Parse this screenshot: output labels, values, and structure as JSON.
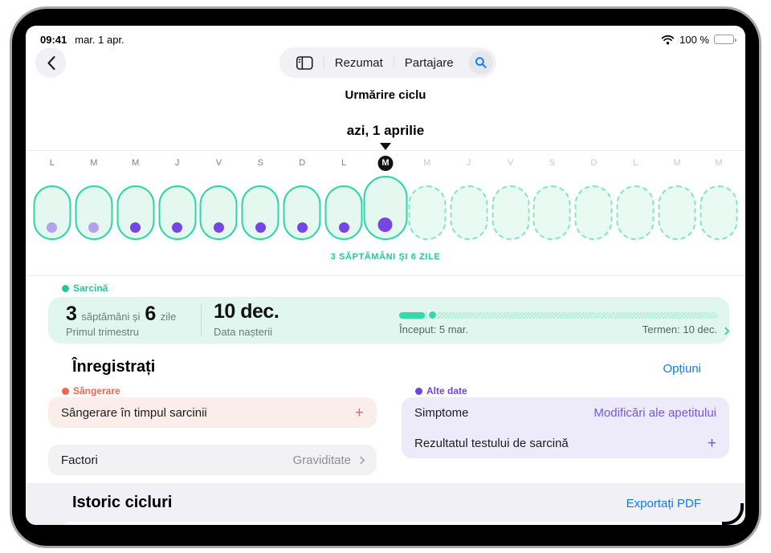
{
  "status_bar": {
    "time": "09:41",
    "date": "mar. 1 apr.",
    "battery_label": "100 %"
  },
  "toolbar": {
    "summary_label": "Rezumat",
    "sharing_label": "Partajare"
  },
  "header": {
    "title": "Urmărire ciclu",
    "selected_date": "azi, 1 aprilie"
  },
  "calendar": {
    "annotation": "3 SĂPTĂMÂNI ȘI 6 ZILE",
    "days": [
      {
        "letter": "L",
        "label": "past",
        "oval": "solid",
        "dot": "light"
      },
      {
        "letter": "M",
        "label": "past",
        "oval": "solid",
        "dot": "light"
      },
      {
        "letter": "M",
        "label": "past",
        "oval": "solid",
        "dot": "dark"
      },
      {
        "letter": "J",
        "label": "past",
        "oval": "solid",
        "dot": "dark"
      },
      {
        "letter": "V",
        "label": "past",
        "oval": "solid",
        "dot": "dark"
      },
      {
        "letter": "S",
        "label": "past",
        "oval": "solid",
        "dot": "dark"
      },
      {
        "letter": "D",
        "label": "past",
        "oval": "solid",
        "dot": "dark"
      },
      {
        "letter": "L",
        "label": "past",
        "oval": "solid",
        "dot": "dark"
      },
      {
        "letter": "M",
        "label": "today",
        "oval": "today",
        "dot": "dark"
      },
      {
        "letter": "M",
        "label": "future",
        "oval": "dashed",
        "dot": "none"
      },
      {
        "letter": "J",
        "label": "future",
        "oval": "dashed",
        "dot": "none"
      },
      {
        "letter": "V",
        "label": "future",
        "oval": "dashed",
        "dot": "none"
      },
      {
        "letter": "S",
        "label": "future",
        "oval": "dashed",
        "dot": "none"
      },
      {
        "letter": "D",
        "label": "future",
        "oval": "dashed",
        "dot": "none"
      },
      {
        "letter": "L",
        "label": "future",
        "oval": "dashed",
        "dot": "none"
      },
      {
        "letter": "M",
        "label": "future",
        "oval": "dashed",
        "dot": "none"
      },
      {
        "letter": "M",
        "label": "future",
        "oval": "dashed",
        "dot": "none"
      }
    ]
  },
  "pregnancy": {
    "section_label": "Sarcină",
    "weeks_value": "3",
    "weeks_unit": "săptămâni și",
    "days_value": "6",
    "days_unit": "zile",
    "trimester": "Primul trimestru",
    "due_value": "10 dec.",
    "due_label": "Data nașterii",
    "progress_percent": 8,
    "start_label": "Început: 5 mar.",
    "end_label": "Termen: 10 dec."
  },
  "log": {
    "title": "Înregistrați",
    "options_label": "Opțiuni",
    "bleeding_section_label": "Sângerare",
    "bleeding_row_label": "Sângerare în timpul sarcinii",
    "bleeding_add_label": "+",
    "other_section_label": "Alte date",
    "symptoms_label": "Simptome",
    "symptoms_value": "Modificări ale apetitului",
    "test_label": "Rezultatul testului de sarcină",
    "test_add_label": "+",
    "factors_label": "Factori",
    "factors_value": "Graviditate"
  },
  "history": {
    "title": "Istoric cicluri",
    "export_label": "Exportați PDF"
  },
  "colors": {
    "teal": "#2BD6A5",
    "purple": "#7645E2",
    "coral": "#F96250",
    "blue": "#0A7AFF",
    "light_purple": "#B3A0EF"
  }
}
